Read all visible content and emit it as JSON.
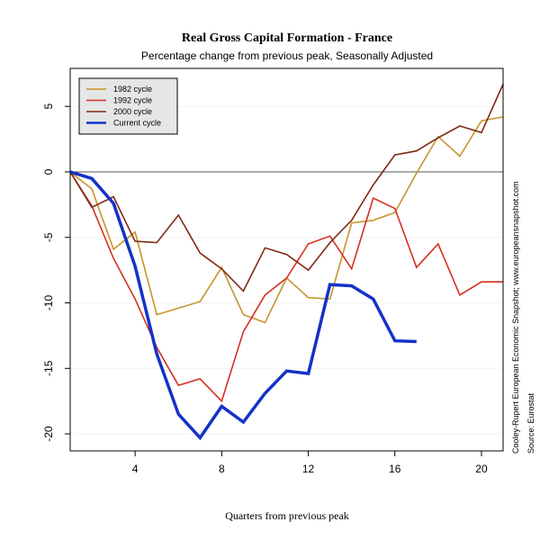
{
  "chart_data": {
    "type": "line",
    "title": "Real Gross Capital Formation - France",
    "subtitle": "Percentage change from previous peak, Seasonally Adjusted",
    "xlabel": "Quarters from previous peak",
    "ylabel": "",
    "xlim": [
      1,
      21
    ],
    "ylim": [
      -21.3,
      7.9
    ],
    "x_ticks": [
      4,
      8,
      12,
      16,
      20
    ],
    "y_ticks": [
      5,
      0,
      -5,
      -10,
      -15,
      -20
    ],
    "zero_line": true,
    "grid": false,
    "legend_position": "top-left",
    "series": [
      {
        "name": "1982 cycle",
        "color": "#c8942e",
        "x": [
          1,
          2,
          3,
          4,
          5,
          6,
          7,
          8,
          9,
          10,
          11,
          12,
          13,
          14,
          15,
          16,
          17,
          18,
          19,
          20,
          21
        ],
        "values": [
          0,
          -1.3,
          -5.9,
          -4.6,
          -10.9,
          -10.4,
          -9.9,
          -7.3,
          -10.9,
          -11.5,
          -8.1,
          -9.6,
          -9.7,
          -3.9,
          -3.7,
          -3.1,
          -0.1,
          2.7,
          1.2,
          3.9,
          4.2
        ]
      },
      {
        "name": "1992 cycle",
        "color": "#d7301f",
        "x": [
          1,
          2,
          3,
          4,
          5,
          6,
          7,
          8,
          9,
          10,
          11,
          12,
          13,
          14,
          15,
          16,
          17,
          18,
          19,
          20,
          21
        ],
        "values": [
          0,
          -2.6,
          -6.6,
          -9.7,
          -13.4,
          -16.3,
          -15.8,
          -17.5,
          -12.2,
          -9.4,
          -8.1,
          -5.5,
          -4.9,
          -7.4,
          -2.0,
          -2.8,
          -7.3,
          -5.5,
          -9.4,
          -8.4,
          -8.4
        ]
      },
      {
        "name": "2000 cycle",
        "color": "#7f2a16",
        "x": [
          1,
          2,
          3,
          4,
          5,
          6,
          7,
          8,
          9,
          10,
          11,
          12,
          13,
          14,
          15,
          16,
          17,
          18,
          19,
          20,
          21
        ],
        "values": [
          0,
          -2.7,
          -1.9,
          -5.3,
          -5.4,
          -3.3,
          -6.2,
          -7.4,
          -9.1,
          -5.8,
          -6.3,
          -7.5,
          -5.4,
          -3.7,
          -1.0,
          1.3,
          1.6,
          2.6,
          3.5,
          3.0,
          6.7
        ]
      },
      {
        "name": "Current cycle",
        "color": "#1432c8",
        "x": [
          1,
          2,
          3,
          4,
          5,
          6,
          7,
          8,
          9,
          10,
          11,
          12,
          13,
          14,
          15,
          16,
          17
        ],
        "values": [
          0,
          -0.5,
          -2.4,
          -7.2,
          -13.9,
          -18.5,
          -20.3,
          -17.9,
          -19.1,
          -16.9,
          -15.2,
          -15.4,
          -8.6,
          -8.7,
          -9.7,
          -12.9,
          -12.95
        ]
      }
    ]
  },
  "side_note": {
    "line1": "Cooley-Rupert European Economic Snapshot; www.europeansnapshot.com",
    "line2": "Source: Eurostat"
  }
}
